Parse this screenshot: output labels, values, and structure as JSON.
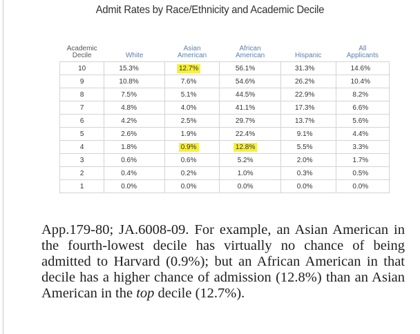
{
  "title": "Admit Rates by Race/Ethnicity and Academic Decile",
  "table": {
    "headers": {
      "decile": [
        "Academic",
        "Decile"
      ],
      "white": [
        "White"
      ],
      "asian": [
        "Asian",
        "American"
      ],
      "african": [
        "African",
        "American"
      ],
      "hispanic": [
        "Hispanic"
      ],
      "all": [
        "All",
        "Applicants"
      ]
    },
    "rows": [
      {
        "decile": "10",
        "white": "15.3%",
        "asian": "12.7%",
        "african": "56.1%",
        "hispanic": "31.3%",
        "all": "14.6%"
      },
      {
        "decile": "9",
        "white": "10.8%",
        "asian": "7.6%",
        "african": "54.6%",
        "hispanic": "26.2%",
        "all": "10.4%"
      },
      {
        "decile": "8",
        "white": "7.5%",
        "asian": "5.1%",
        "african": "44.5%",
        "hispanic": "22.9%",
        "all": "8.2%"
      },
      {
        "decile": "7",
        "white": "4.8%",
        "asian": "4.0%",
        "african": "41.1%",
        "hispanic": "17.3%",
        "all": "6.6%"
      },
      {
        "decile": "6",
        "white": "4.2%",
        "asian": "2.5%",
        "african": "29.7%",
        "hispanic": "13.7%",
        "all": "5.6%"
      },
      {
        "decile": "5",
        "white": "2.6%",
        "asian": "1.9%",
        "african": "22.4%",
        "hispanic": "9.1%",
        "all": "4.4%"
      },
      {
        "decile": "4",
        "white": "1.8%",
        "asian": "0.9%",
        "african": "12.8%",
        "hispanic": "5.5%",
        "all": "3.3%"
      },
      {
        "decile": "3",
        "white": "0.6%",
        "asian": "0.6%",
        "african": "5.2%",
        "hispanic": "2.0%",
        "all": "1.7%"
      },
      {
        "decile": "2",
        "white": "0.4%",
        "asian": "0.2%",
        "african": "1.0%",
        "hispanic": "0.3%",
        "all": "0.5%"
      },
      {
        "decile": "1",
        "white": "0.0%",
        "asian": "0.0%",
        "african": "0.0%",
        "hispanic": "0.0%",
        "all": "0.0%"
      }
    ],
    "highlight_color": "#f7f03a",
    "highlighted_cells": [
      {
        "row": 0,
        "col": "asian"
      },
      {
        "row": 6,
        "col": "asian"
      },
      {
        "row": 6,
        "col": "african"
      }
    ]
  },
  "caption": {
    "part1": "App.179-80; JA.6008-09. For example, an Asian American in the fourth-lowest decile has virtually no chance of being admitted to Harvard (0.9%); but an African American in that decile has a higher chance of admission (12.8%) than an Asian American in the ",
    "italic": "top",
    "part2": " decile (12.7%)."
  }
}
